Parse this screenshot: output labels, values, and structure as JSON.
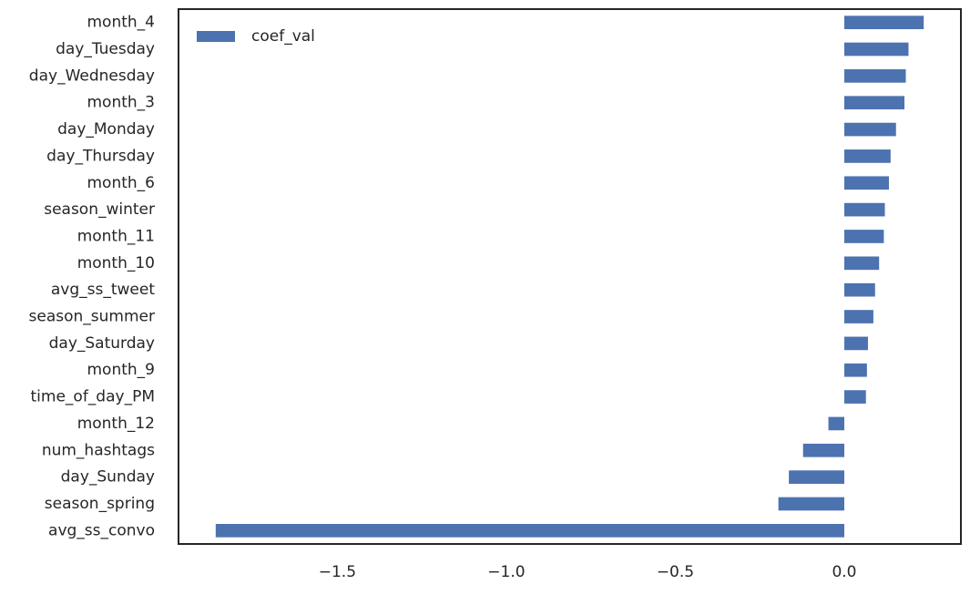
{
  "chart_data": {
    "type": "bar",
    "orientation": "horizontal",
    "categories": [
      "month_4",
      "day_Tuesday",
      "day_Wednesday",
      "month_3",
      "day_Monday",
      "day_Thursday",
      "month_6",
      "season_winter",
      "month_11",
      "month_10",
      "avg_ss_tweet",
      "season_summer",
      "day_Saturday",
      "month_9",
      "time_of_day_PM",
      "month_12",
      "num_hashtags",
      "day_Sunday",
      "season_spring",
      "avg_ss_convo"
    ],
    "series": [
      {
        "name": "coef_val",
        "values": [
          0.235,
          0.19,
          0.182,
          0.178,
          0.153,
          0.137,
          0.132,
          0.12,
          0.117,
          0.103,
          0.091,
          0.086,
          0.07,
          0.067,
          0.064,
          -0.047,
          -0.122,
          -0.164,
          -0.195,
          -1.86
        ],
        "color": "#4c72b0"
      }
    ],
    "xticks": [
      -1.5,
      -1.0,
      -0.5,
      0.0
    ],
    "xtick_labels": [
      "−1.5",
      "−1.0",
      "−0.5",
      "0.0"
    ],
    "xlim": [
      -1.97,
      0.345
    ],
    "grid": false,
    "legend_placement": "top-left"
  }
}
